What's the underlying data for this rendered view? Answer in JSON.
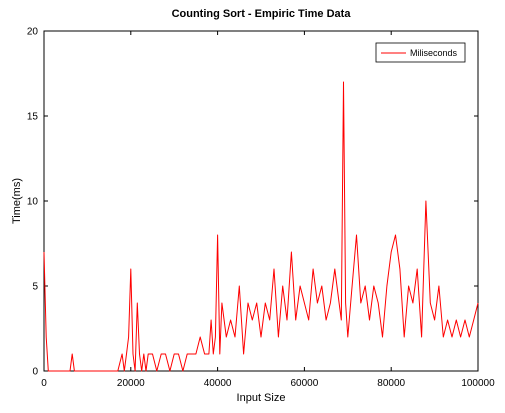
{
  "chart_data": {
    "type": "line",
    "title": "Counting Sort - Empiric Time Data",
    "xlabel": "Input Size",
    "ylabel": "Time(ms)",
    "xlim": [
      0,
      100000
    ],
    "ylim": [
      0,
      20
    ],
    "xticks": [
      0,
      20000,
      40000,
      60000,
      80000,
      100000
    ],
    "yticks": [
      0,
      5,
      10,
      15,
      20
    ],
    "grid": false,
    "legend": {
      "position": "top-right",
      "entries": [
        "Miliseconds"
      ]
    },
    "series": [
      {
        "name": "Miliseconds",
        "color": "#ff0000",
        "x": [
          0,
          500,
          1000,
          1500,
          2000,
          3000,
          4000,
          5000,
          6000,
          6500,
          7000,
          7500,
          8000,
          10000,
          12000,
          14000,
          16000,
          17000,
          18000,
          18500,
          19000,
          19500,
          20000,
          20500,
          21000,
          21500,
          22000,
          22500,
          23000,
          23500,
          24000,
          24500,
          25000,
          26000,
          27000,
          28000,
          29000,
          30000,
          31000,
          32000,
          33000,
          34000,
          35000,
          36000,
          37000,
          38000,
          38500,
          39000,
          39500,
          40000,
          40500,
          41000,
          42000,
          43000,
          44000,
          45000,
          46000,
          47000,
          48000,
          49000,
          50000,
          51000,
          52000,
          53000,
          54000,
          55000,
          56000,
          57000,
          58000,
          59000,
          60000,
          61000,
          62000,
          63000,
          64000,
          65000,
          66000,
          67000,
          68000,
          68500,
          69000,
          69500,
          70000,
          71000,
          72000,
          73000,
          74000,
          75000,
          76000,
          77000,
          78000,
          79000,
          80000,
          81000,
          82000,
          83000,
          84000,
          85000,
          86000,
          87000,
          88000,
          89000,
          90000,
          91000,
          92000,
          93000,
          94000,
          95000,
          96000,
          97000,
          98000,
          99000,
          100000
        ],
        "y": [
          7,
          2,
          0,
          0,
          0,
          0,
          0,
          0,
          0,
          1,
          0,
          0,
          0,
          0,
          0,
          0,
          0,
          0,
          1,
          0,
          1,
          2,
          6,
          1,
          0,
          4,
          1,
          0,
          1,
          0,
          1,
          1,
          1,
          0,
          1,
          1,
          0,
          1,
          1,
          0,
          1,
          1,
          1,
          2,
          1,
          1,
          3,
          1,
          2,
          8,
          1,
          4,
          2,
          3,
          2,
          5,
          1,
          4,
          3,
          4,
          2,
          4,
          3,
          6,
          2,
          5,
          3,
          7,
          3,
          5,
          4,
          3,
          6,
          4,
          5,
          3,
          4,
          6,
          4,
          3,
          17,
          4,
          2,
          5,
          8,
          4,
          5,
          3,
          5,
          4,
          2,
          5,
          7,
          8,
          6,
          2,
          5,
          4,
          6,
          2,
          10,
          4,
          3,
          5,
          2,
          3,
          2,
          3,
          2,
          3,
          2,
          3,
          4
        ]
      }
    ]
  }
}
